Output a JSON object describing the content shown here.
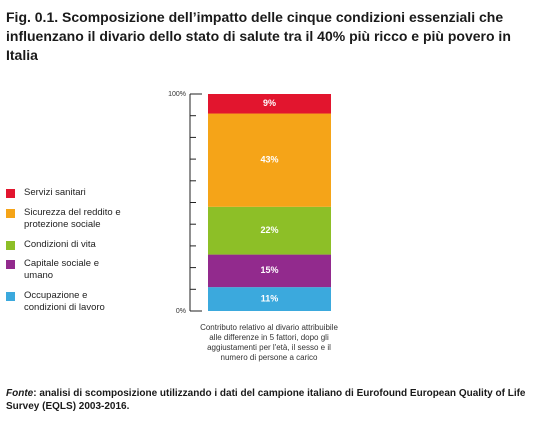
{
  "chart_data": {
    "type": "stacked-bar",
    "title": "Fig. 0.1. Scomposizione dell’impatto delle cinque condizioni essenziali che influenzano il divario dello stato di salute tra il 40% più ricco e più povero in Italia",
    "series": [
      {
        "name": "Servizi sanitari",
        "color": "#e2152e",
        "values": [
          9
        ],
        "value_labels": [
          "9%"
        ]
      },
      {
        "name": "Sicurezza del reddito e protezione sociale",
        "color": "#f5a418",
        "values": [
          43
        ],
        "value_labels": [
          "43%"
        ]
      },
      {
        "name": "Condizioni di vita",
        "color": "#8dbf27",
        "values": [
          22
        ],
        "value_labels": [
          "22%"
        ]
      },
      {
        "name": "Capitale sociale e umano",
        "color": "#922a8d",
        "values": [
          15
        ],
        "value_labels": [
          "15%"
        ]
      },
      {
        "name": "Occupazione e condizioni di lavoro",
        "color": "#3ba9dd",
        "values": [
          11
        ],
        "value_labels": [
          "11%"
        ]
      }
    ],
    "ylim": [
      0,
      100
    ],
    "yticks": [
      {
        "value": 0,
        "label": "0%"
      },
      {
        "value": 100,
        "label": "100%"
      }
    ],
    "yminor_ticks": [
      10,
      20,
      30,
      40,
      50,
      60,
      70,
      80,
      90
    ],
    "x_label": "Contributo relativo al divario attribuibile alle differenze in 5 fattori, dopo gli aggiustamenti per l'età, il sesso e il numero di persone a carico",
    "source_label": "Fonte",
    "source": ": analisi di scomposizione utilizzando i dati del campione italiano di Eurofound European Quality of Life Survey (EQLS) 2003-2016."
  }
}
